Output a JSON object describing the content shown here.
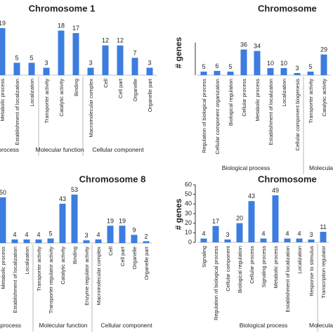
{
  "chart_data": [
    {
      "type": "bar",
      "title": "Chromosome 1",
      "color": "#3c7ddf",
      "ylim": [
        0,
        19
      ],
      "categories": [
        "Metabolic process",
        "Establishment of localization",
        "Localization",
        "Transporter activity",
        "Catalytic activity",
        "Binding",
        "Macromolecular complex",
        "Cell",
        "Cell part",
        "Organelle",
        "Organelle part"
      ],
      "values": [
        19,
        5,
        5,
        3,
        18,
        17,
        3,
        12,
        12,
        7,
        3
      ],
      "groups": [
        "Biological process",
        "Molecular function",
        "Cellular component"
      ]
    },
    {
      "type": "bar",
      "title": "Chromosome",
      "color": "#3c7ddf",
      "ylabel": "# genes",
      "ylim": [
        0,
        36
      ],
      "categories": [
        "Regulation of biological process",
        "Cellular component organization",
        "Biological regulation",
        "Cellular process",
        "Metabolic process",
        "Establishment of localization",
        "Localization",
        "Cellular component biogenesis",
        "Transporter activity",
        "Catalytic activity"
      ],
      "values": [
        5,
        6,
        5,
        36,
        34,
        10,
        10,
        3,
        5,
        29
      ],
      "groups": [
        "Biological process",
        "Molecular function"
      ]
    },
    {
      "type": "bar",
      "title": "Chromosome 8",
      "color": "#3c7ddf",
      "ylim": [
        0,
        53
      ],
      "categories": [
        "Metabolic process",
        "Establishment of localization",
        "Localization",
        "Transporter activity",
        "Transporter regulator activity",
        "Catalytic activity",
        "Binding",
        "Enzyme regulator activity",
        "Macromolecular complex",
        "Cell",
        "Cell part",
        "Organelle",
        "Organelle part"
      ],
      "values": [
        50,
        4,
        4,
        4,
        5,
        43,
        53,
        3,
        4,
        19,
        19,
        9,
        2
      ],
      "groups": [
        "Biological process",
        "Molecular function",
        "Cellular component"
      ]
    },
    {
      "type": "bar",
      "title": "Chromosome",
      "color": "#3c7ddf",
      "ylabel": "# genes",
      "ylim": [
        0,
        60
      ],
      "yticks": [
        0,
        10,
        20,
        30,
        40,
        50,
        60
      ],
      "categories": [
        "Signaling",
        "Regulation of biological process",
        "Cellular component",
        "Biological regulation",
        "Cellular process",
        "Signaling process",
        "Metabolic process",
        "Establishment of localization",
        "Localization",
        "Response to stimulus",
        "Transcription regulator"
      ],
      "values": [
        4,
        17,
        3,
        20,
        43,
        4,
        49,
        4,
        4,
        3,
        11
      ],
      "groups": [
        "Biological process",
        "Molecular function"
      ]
    }
  ]
}
